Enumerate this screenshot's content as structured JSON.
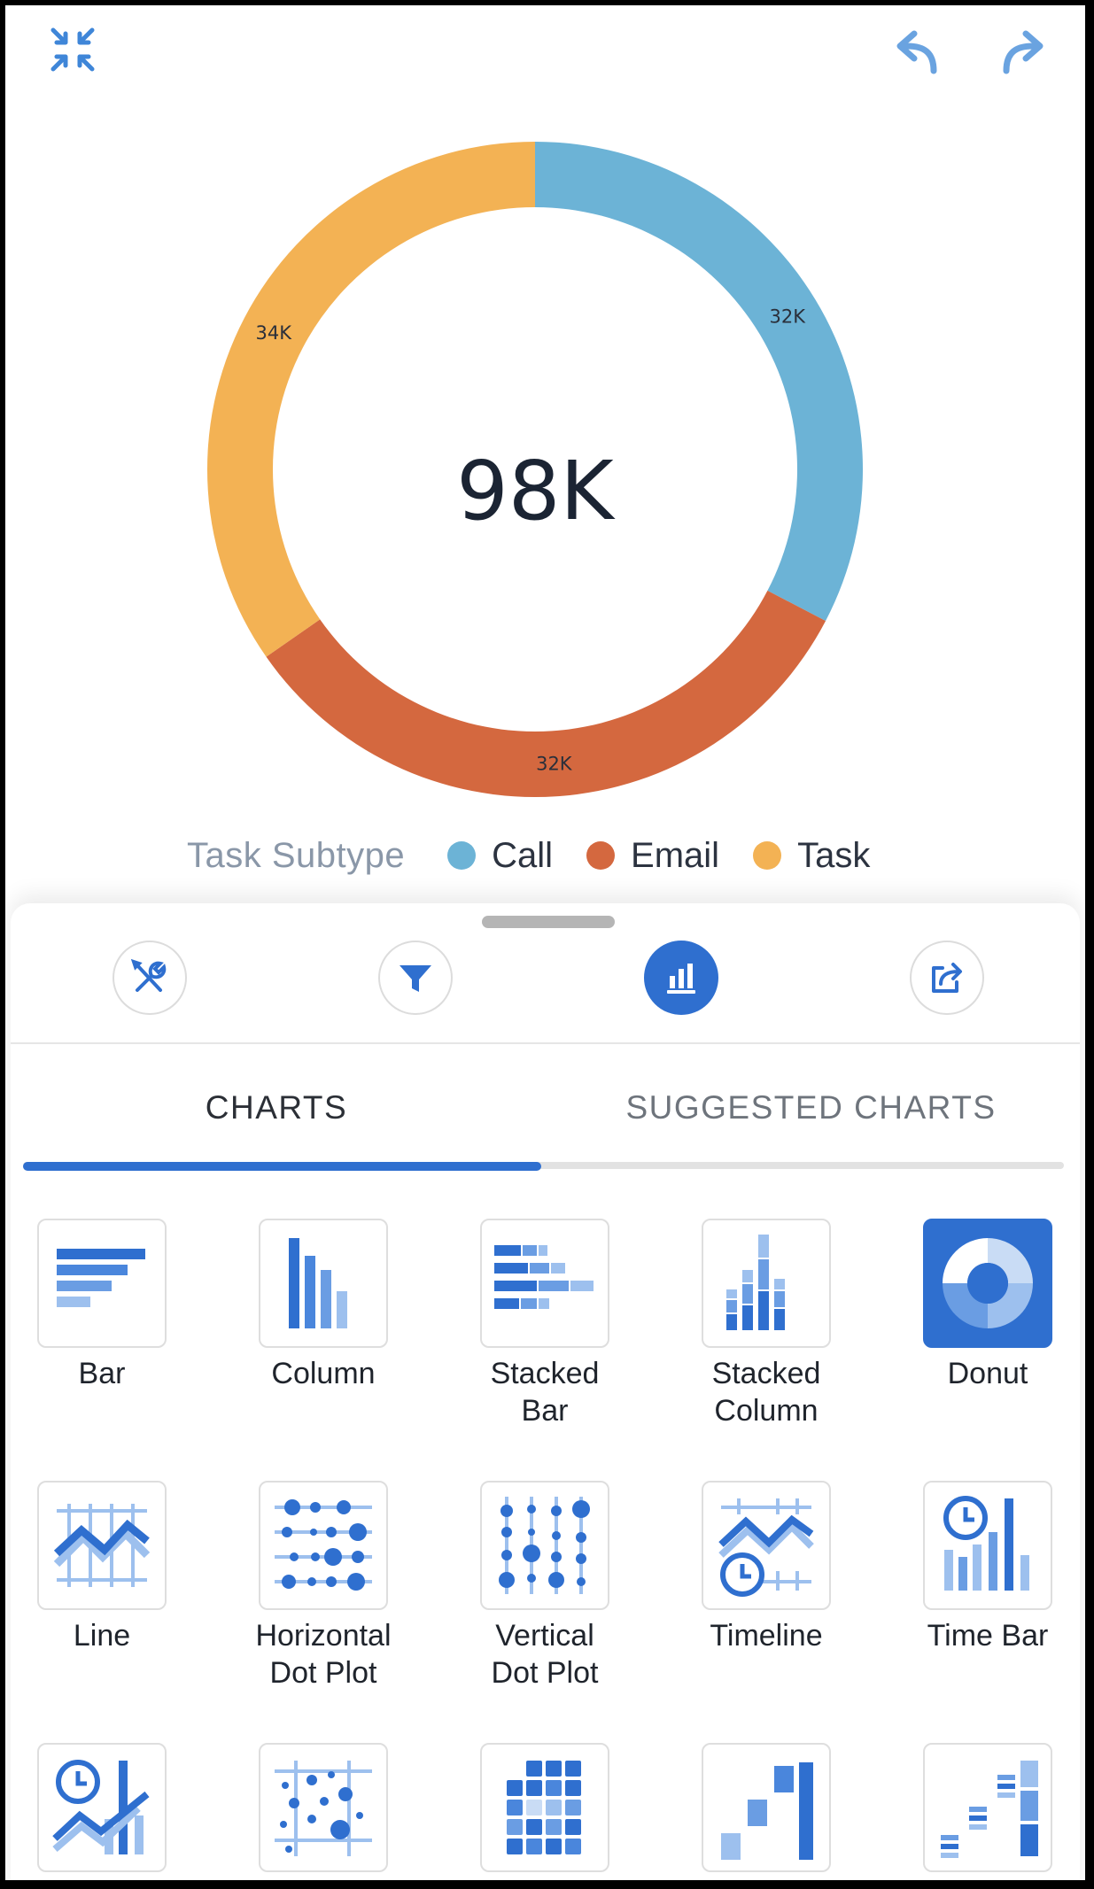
{
  "toolbar": {
    "collapse_icon": "collapse-arrows-icon",
    "undo_icon": "undo-arrow-icon",
    "redo_icon": "redo-arrow-icon",
    "icon_color": "#4a90d9"
  },
  "chart_data": {
    "type": "pie",
    "variant": "donut",
    "center_label": "98K",
    "legend_title": "Task Subtype",
    "legend_placement": "bottom",
    "slices": [
      {
        "name": "Call",
        "value": 32,
        "label": "32K",
        "color": "#6cb3d6"
      },
      {
        "name": "Email",
        "value": 32,
        "label": "32K",
        "color": "#d4683f"
      },
      {
        "name": "Task",
        "value": 34,
        "label": "34K",
        "color": "#f3b254"
      }
    ]
  },
  "sheet": {
    "tools": [
      {
        "name": "chart-properties",
        "icon": "wrench-screwdriver-icon",
        "active": false
      },
      {
        "name": "filter",
        "icon": "funnel-icon",
        "active": false
      },
      {
        "name": "chart-type",
        "icon": "bar-chart-icon",
        "active": true
      },
      {
        "name": "share",
        "icon": "share-arrow-icon",
        "active": false
      }
    ],
    "tabs": {
      "charts": "CHARTS",
      "suggested": "SUGGESTED CHARTS",
      "active": "charts"
    },
    "accent": "#2f6fcf",
    "chart_types": [
      {
        "label": "Bar",
        "lines": [
          "Bar"
        ],
        "icon": "bar-chart-icon"
      },
      {
        "label": "Column",
        "lines": [
          "Column"
        ],
        "icon": "column-chart-icon"
      },
      {
        "label": "Stacked Bar",
        "lines": [
          "Stacked",
          "Bar"
        ],
        "icon": "stacked-bar-icon"
      },
      {
        "label": "Stacked Column",
        "lines": [
          "Stacked",
          "Column"
        ],
        "icon": "stacked-column-icon"
      },
      {
        "label": "Donut",
        "lines": [
          "Donut"
        ],
        "icon": "donut-icon",
        "selected": true
      },
      {
        "label": "Line",
        "lines": [
          "Line"
        ],
        "icon": "line-chart-icon"
      },
      {
        "label": "Horizontal Dot Plot",
        "lines": [
          "Horizontal",
          "Dot Plot"
        ],
        "icon": "horizontal-dot-plot-icon"
      },
      {
        "label": "Vertical Dot Plot",
        "lines": [
          "Vertical",
          "Dot Plot"
        ],
        "icon": "vertical-dot-plot-icon"
      },
      {
        "label": "Timeline",
        "lines": [
          "Timeline"
        ],
        "icon": "timeline-icon"
      },
      {
        "label": "Time Bar",
        "lines": [
          "Time Bar"
        ],
        "icon": "time-bar-icon"
      },
      {
        "label": "",
        "lines": [],
        "icon": "time-combo-icon"
      },
      {
        "label": "",
        "lines": [],
        "icon": "scatter-plot-icon"
      },
      {
        "label": "",
        "lines": [],
        "icon": "heatmap-icon"
      },
      {
        "label": "",
        "lines": [],
        "icon": "waterfall-icon"
      },
      {
        "label": "",
        "lines": [],
        "icon": "stacked-waterfall-icon"
      }
    ]
  }
}
